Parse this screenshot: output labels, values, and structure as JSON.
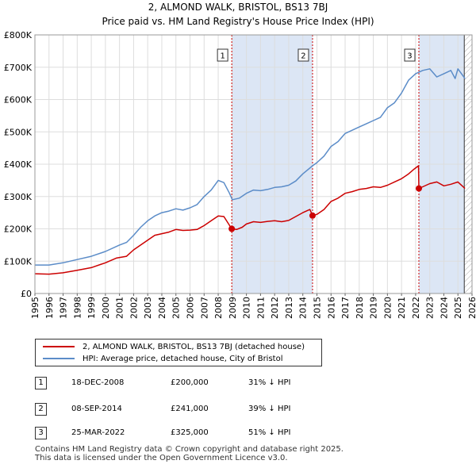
{
  "title": "2, ALMOND WALK, BRISTOL, BS13 7BJ",
  "subtitle": "Price paid vs. HM Land Registry's House Price Index (HPI)",
  "colors": {
    "property": "#cc0000",
    "hpi": "#5b8cc8",
    "shade": "#dce6f5",
    "vline": "#cc0000",
    "grid": "#dddddd"
  },
  "legend": {
    "property_label": "2, ALMOND WALK, BRISTOL, BS13 7BJ (detached house)",
    "hpi_label": "HPI: Average price, detached house, City of Bristol"
  },
  "transactions": [
    {
      "num": "1",
      "date": "18-DEC-2008",
      "price": "£200,000",
      "hpi_delta": "31% ↓ HPI"
    },
    {
      "num": "2",
      "date": "08-SEP-2014",
      "price": "£241,000",
      "hpi_delta": "39% ↓ HPI"
    },
    {
      "num": "3",
      "date": "25-MAR-2022",
      "price": "£325,000",
      "hpi_delta": "51% ↓ HPI"
    }
  ],
  "footer": {
    "line1": "Contains HM Land Registry data © Crown copyright and database right 2025.",
    "line2": "This data is licensed under the Open Government Licence v3.0."
  },
  "chart_data": {
    "type": "line",
    "title": "2, ALMOND WALK, BRISTOL, BS13 7BJ",
    "subtitle": "Price paid vs. HM Land Registry's House Price Index (HPI)",
    "xlabel": "",
    "ylabel": "",
    "xlim": [
      1995,
      2026
    ],
    "ylim": [
      0,
      800000
    ],
    "x_ticks": [
      "1995",
      "1996",
      "1997",
      "1998",
      "1999",
      "2000",
      "2001",
      "2002",
      "2003",
      "2004",
      "2005",
      "2006",
      "2007",
      "2008",
      "2009",
      "2010",
      "2011",
      "2012",
      "2013",
      "2014",
      "2015",
      "2016",
      "2017",
      "2018",
      "2019",
      "2020",
      "2021",
      "2022",
      "2023",
      "2024",
      "2025",
      "2026"
    ],
    "y_ticks": [
      {
        "value": 0,
        "label": "£0"
      },
      {
        "value": 100000,
        "label": "£100K"
      },
      {
        "value": 200000,
        "label": "£200K"
      },
      {
        "value": 300000,
        "label": "£300K"
      },
      {
        "value": 400000,
        "label": "£400K"
      },
      {
        "value": 500000,
        "label": "£500K"
      },
      {
        "value": 600000,
        "label": "£600K"
      },
      {
        "value": 700000,
        "label": "£700K"
      },
      {
        "value": 800000,
        "label": "£800K"
      }
    ],
    "grid": true,
    "shaded_ranges": [
      [
        2008.96,
        2014.69
      ],
      [
        2022.23,
        2025.45
      ]
    ],
    "hatched_from": 2025.45,
    "series": [
      {
        "name": "2, ALMOND WALK, BRISTOL, BS13 7BJ (detached house)",
        "color": "#cc0000",
        "points": [
          [
            1995,
            61000
          ],
          [
            1996,
            60000
          ],
          [
            1997,
            64000
          ],
          [
            1998,
            72000
          ],
          [
            1999,
            80000
          ],
          [
            2000,
            95000
          ],
          [
            2000.8,
            110000
          ],
          [
            2001.5,
            115000
          ],
          [
            2002,
            135000
          ],
          [
            2002.5,
            150000
          ],
          [
            2003,
            165000
          ],
          [
            2003.5,
            180000
          ],
          [
            2004,
            185000
          ],
          [
            2004.5,
            190000
          ],
          [
            2005,
            198000
          ],
          [
            2005.5,
            195000
          ],
          [
            2006,
            196000
          ],
          [
            2006.5,
            198000
          ],
          [
            2007,
            210000
          ],
          [
            2007.5,
            225000
          ],
          [
            2008,
            240000
          ],
          [
            2008.4,
            238000
          ],
          [
            2008.96,
            200000
          ],
          [
            2009.3,
            198000
          ],
          [
            2009.7,
            205000
          ],
          [
            2010,
            215000
          ],
          [
            2010.5,
            222000
          ],
          [
            2011,
            220000
          ],
          [
            2011.5,
            223000
          ],
          [
            2012,
            225000
          ],
          [
            2012.5,
            222000
          ],
          [
            2013,
            226000
          ],
          [
            2013.5,
            238000
          ],
          [
            2014,
            250000
          ],
          [
            2014.5,
            260000
          ],
          [
            2014.69,
            241000
          ],
          [
            2015,
            245000
          ],
          [
            2015.5,
            260000
          ],
          [
            2016,
            285000
          ],
          [
            2016.5,
            295000
          ],
          [
            2017,
            310000
          ],
          [
            2017.5,
            315000
          ],
          [
            2018,
            322000
          ],
          [
            2018.5,
            325000
          ],
          [
            2019,
            330000
          ],
          [
            2019.5,
            328000
          ],
          [
            2020,
            335000
          ],
          [
            2020.5,
            345000
          ],
          [
            2021,
            355000
          ],
          [
            2021.5,
            370000
          ],
          [
            2021.9,
            385000
          ],
          [
            2022.2,
            395000
          ],
          [
            2022.23,
            325000
          ],
          [
            2022.5,
            330000
          ],
          [
            2023,
            340000
          ],
          [
            2023.5,
            345000
          ],
          [
            2024,
            333000
          ],
          [
            2024.5,
            338000
          ],
          [
            2025,
            345000
          ],
          [
            2025.5,
            325000
          ]
        ],
        "markers": [
          [
            2008.96,
            200000
          ],
          [
            2014.69,
            241000
          ],
          [
            2022.23,
            325000
          ]
        ]
      },
      {
        "name": "HPI: Average price, detached house, City of Bristol",
        "color": "#5b8cc8",
        "points": [
          [
            1995,
            88000
          ],
          [
            1996,
            88000
          ],
          [
            1997,
            95000
          ],
          [
            1998,
            105000
          ],
          [
            1999,
            115000
          ],
          [
            2000,
            130000
          ],
          [
            2001,
            150000
          ],
          [
            2001.5,
            158000
          ],
          [
            2002,
            180000
          ],
          [
            2002.5,
            205000
          ],
          [
            2003,
            225000
          ],
          [
            2003.5,
            240000
          ],
          [
            2004,
            250000
          ],
          [
            2004.5,
            255000
          ],
          [
            2005,
            262000
          ],
          [
            2005.5,
            258000
          ],
          [
            2006,
            265000
          ],
          [
            2006.5,
            275000
          ],
          [
            2007,
            300000
          ],
          [
            2007.5,
            320000
          ],
          [
            2008,
            350000
          ],
          [
            2008.4,
            343000
          ],
          [
            2008.8,
            310000
          ],
          [
            2009,
            290000
          ],
          [
            2009.5,
            295000
          ],
          [
            2010,
            310000
          ],
          [
            2010.5,
            320000
          ],
          [
            2011,
            318000
          ],
          [
            2011.5,
            322000
          ],
          [
            2012,
            328000
          ],
          [
            2012.5,
            330000
          ],
          [
            2013,
            335000
          ],
          [
            2013.5,
            348000
          ],
          [
            2014,
            370000
          ],
          [
            2014.69,
            395000
          ],
          [
            2015,
            405000
          ],
          [
            2015.5,
            425000
          ],
          [
            2016,
            455000
          ],
          [
            2016.5,
            470000
          ],
          [
            2017,
            495000
          ],
          [
            2017.5,
            505000
          ],
          [
            2018,
            515000
          ],
          [
            2018.5,
            525000
          ],
          [
            2019,
            535000
          ],
          [
            2019.5,
            545000
          ],
          [
            2020,
            575000
          ],
          [
            2020.5,
            590000
          ],
          [
            2021,
            620000
          ],
          [
            2021.5,
            660000
          ],
          [
            2022,
            680000
          ],
          [
            2022.5,
            690000
          ],
          [
            2023,
            695000
          ],
          [
            2023.5,
            670000
          ],
          [
            2024,
            680000
          ],
          [
            2024.5,
            690000
          ],
          [
            2024.8,
            665000
          ],
          [
            2025,
            695000
          ],
          [
            2025.5,
            665000
          ]
        ]
      }
    ],
    "annotations": [
      {
        "label": "1",
        "x": 2008.96
      },
      {
        "label": "2",
        "x": 2014.69
      },
      {
        "label": "3",
        "x": 2022.23
      }
    ]
  }
}
